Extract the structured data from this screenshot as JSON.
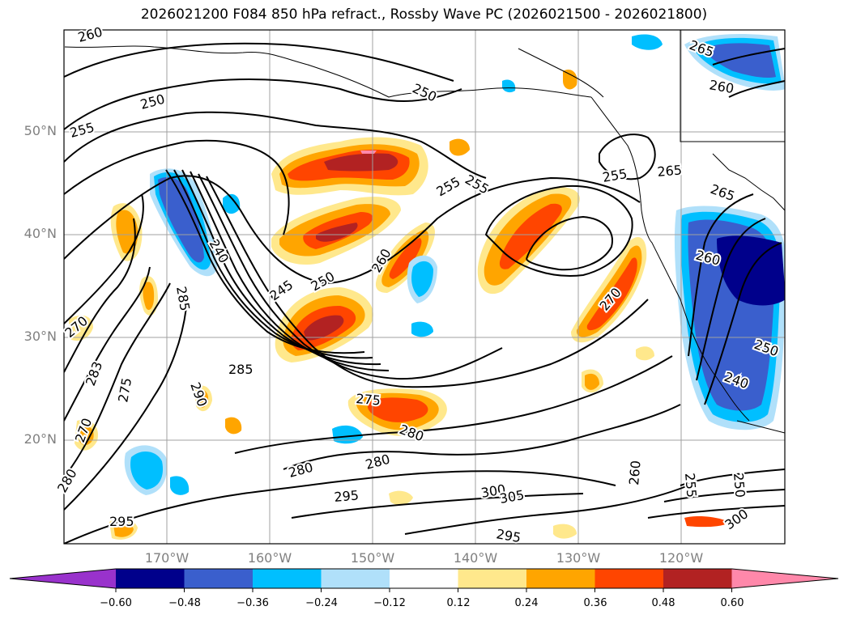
{
  "title": "2026021200 F084 850 hPa refract., Rossby Wave PC (2026021500 - 2026021800)",
  "lat_labels": [
    "50°N",
    "40°N",
    "30°N",
    "20°N"
  ],
  "lon_labels": [
    "170°W",
    "160°W",
    "150°W",
    "140°W",
    "130°W",
    "120°W"
  ],
  "colorbar": {
    "ticks": [
      "−0.60",
      "−0.48",
      "−0.36",
      "−0.24",
      "−0.12",
      "0.12",
      "0.24",
      "0.36",
      "0.48",
      "0.60"
    ],
    "colors": [
      "#9932cc",
      "#00008b",
      "#3a5fcd",
      "#00bfff",
      "#b0e0fa",
      "#ffffff",
      "#ffe88c",
      "#ffa500",
      "#ff4500",
      "#b22222",
      "#ff88aa"
    ]
  },
  "contour_labels": [
    {
      "text": "260"
    },
    {
      "text": "250"
    },
    {
      "text": "255"
    },
    {
      "text": "250"
    },
    {
      "text": "265"
    },
    {
      "text": "260"
    },
    {
      "text": "255"
    },
    {
      "text": "255"
    },
    {
      "text": "255"
    },
    {
      "text": "265"
    },
    {
      "text": "265"
    },
    {
      "text": "240"
    },
    {
      "text": "285"
    },
    {
      "text": "245"
    },
    {
      "text": "250"
    },
    {
      "text": "260"
    },
    {
      "text": "260"
    },
    {
      "text": "270"
    },
    {
      "text": "270"
    },
    {
      "text": "285"
    },
    {
      "text": "283"
    },
    {
      "text": "290"
    },
    {
      "text": "275"
    },
    {
      "text": "275"
    },
    {
      "text": "280"
    },
    {
      "text": "270"
    },
    {
      "text": "280"
    },
    {
      "text": "280"
    },
    {
      "text": "280"
    },
    {
      "text": "295"
    },
    {
      "text": "295"
    },
    {
      "text": "300"
    },
    {
      "text": "305"
    },
    {
      "text": "295"
    },
    {
      "text": "260"
    },
    {
      "text": "255"
    },
    {
      "text": "250"
    },
    {
      "text": "300"
    },
    {
      "text": "240"
    },
    {
      "text": "250"
    }
  ]
}
